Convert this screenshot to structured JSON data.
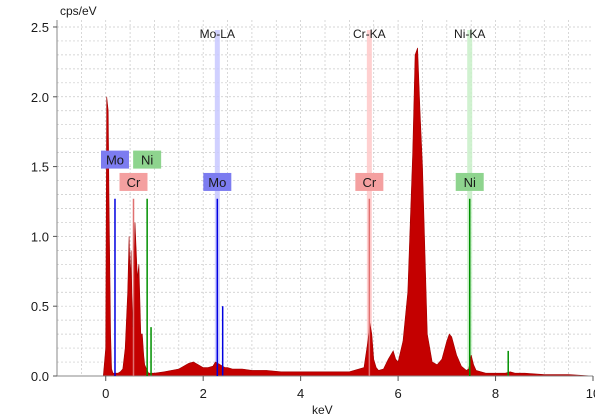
{
  "chart_data": {
    "type": "area",
    "y_unit": "cps/eV",
    "x_unit": "keV",
    "xlim": [
      -1,
      10
    ],
    "ylim": [
      0,
      2.55
    ],
    "x_ticks": [
      0,
      2,
      4,
      6,
      8,
      10
    ],
    "x_tick_labels": [
      "0",
      "2",
      "4",
      "6",
      "8",
      "10"
    ],
    "y_ticks": [
      0,
      0.5,
      1.0,
      1.5,
      2.0,
      2.5
    ],
    "y_tick_labels": [
      "0.0",
      "0.5",
      "1.0",
      "1.5",
      "2.0",
      "2.5"
    ],
    "grid": true,
    "spectrum_color": "#c40000",
    "spectrum": {
      "x": [
        -0.05,
        0.0,
        0.02,
        0.05,
        0.07,
        0.1,
        0.12,
        0.15,
        0.2,
        0.25,
        0.3,
        0.35,
        0.4,
        0.45,
        0.48,
        0.5,
        0.52,
        0.55,
        0.6,
        0.65,
        0.68,
        0.72,
        0.75,
        0.78,
        0.8,
        0.85,
        0.88,
        0.9,
        0.95,
        1.0,
        1.2,
        1.5,
        1.7,
        1.8,
        1.9,
        2.0,
        2.1,
        2.2,
        2.25,
        2.3,
        2.35,
        2.4,
        2.45,
        2.5,
        2.6,
        2.8,
        3.0,
        3.3,
        3.6,
        4.0,
        4.5,
        5.0,
        5.3,
        5.38,
        5.42,
        5.46,
        5.5,
        5.55,
        5.6,
        5.7,
        5.8,
        5.9,
        5.95,
        6.0,
        6.1,
        6.2,
        6.3,
        6.35,
        6.4,
        6.45,
        6.5,
        6.55,
        6.6,
        6.7,
        6.8,
        6.9,
        7.0,
        7.05,
        7.1,
        7.2,
        7.3,
        7.4,
        7.45,
        7.5,
        7.55,
        7.6,
        7.7,
        7.8,
        8.0,
        8.2,
        8.3,
        8.4,
        8.6,
        9.0,
        9.5,
        10.0
      ],
      "y": [
        0.0,
        0.2,
        2.0,
        1.9,
        1.2,
        0.3,
        0.05,
        0.02,
        0.02,
        0.02,
        0.03,
        0.05,
        0.2,
        0.6,
        1.0,
        0.7,
        0.9,
        0.35,
        1.1,
        0.7,
        0.8,
        0.3,
        0.3,
        0.15,
        0.08,
        0.04,
        0.02,
        0.02,
        0.02,
        0.02,
        0.03,
        0.05,
        0.09,
        0.1,
        0.08,
        0.06,
        0.06,
        0.07,
        0.1,
        0.09,
        0.08,
        0.07,
        0.06,
        0.06,
        0.05,
        0.05,
        0.04,
        0.04,
        0.03,
        0.03,
        0.03,
        0.03,
        0.06,
        0.25,
        0.38,
        0.3,
        0.12,
        0.06,
        0.04,
        0.05,
        0.12,
        0.18,
        0.12,
        0.1,
        0.25,
        0.6,
        1.6,
        2.3,
        2.35,
        1.9,
        1.5,
        0.9,
        0.3,
        0.1,
        0.08,
        0.12,
        0.25,
        0.3,
        0.28,
        0.15,
        0.07,
        0.04,
        0.05,
        0.15,
        0.08,
        0.04,
        0.03,
        0.02,
        0.02,
        0.02,
        0.03,
        0.02,
        0.02,
        0.01,
        0.01,
        0.0
      ]
    },
    "line_labels": [
      {
        "text": "Mo-LA",
        "x": 2.29,
        "color": "#c8c8ff"
      },
      {
        "text": "Cr-KA",
        "x": 5.41,
        "color": "#ffc8c8"
      },
      {
        "text": "Ni-KA",
        "x": 7.47,
        "color": "#c8f0c8"
      }
    ],
    "element_markers": [
      {
        "text": "Mo",
        "x": 0.19,
        "y": 1.55,
        "line_top": 1.27,
        "color": "#7c7cf0",
        "line_color": "#0000e0"
      },
      {
        "text": "Ni",
        "x": 0.85,
        "y": 1.55,
        "line_top": 1.27,
        "color": "#8ed48e",
        "line_color": "#009000"
      },
      {
        "text": "Cr",
        "x": 0.57,
        "y": 1.39,
        "line_top": 1.27,
        "color": "#f4a0a0",
        "line_color": "#e07070"
      },
      {
        "text": "Mo",
        "x": 2.29,
        "y": 1.39,
        "line_top": 1.27,
        "color": "#7c7cf0",
        "line_color": "#0000e0"
      },
      {
        "text": "Cr",
        "x": 5.41,
        "y": 1.39,
        "line_top": 1.27,
        "color": "#f4a0a0",
        "line_color": "#e07070"
      },
      {
        "text": "Ni",
        "x": 7.47,
        "y": 1.39,
        "line_top": 1.27,
        "color": "#8ed48e",
        "line_color": "#009000"
      }
    ],
    "extra_lines": [
      {
        "x": 2.4,
        "y": 0.5,
        "color": "#0000e0"
      },
      {
        "x": 8.26,
        "y": 0.18,
        "color": "#009000"
      },
      {
        "x": 0.93,
        "y": 0.35,
        "color": "#009000"
      }
    ]
  }
}
